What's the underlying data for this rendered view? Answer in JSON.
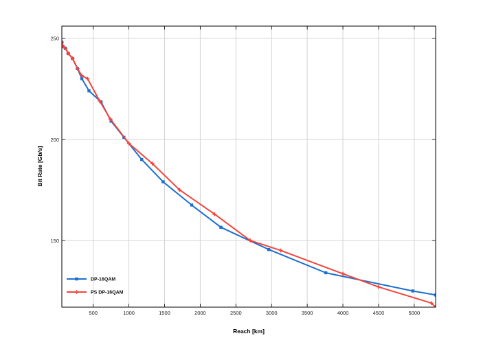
{
  "chart_data": {
    "type": "line",
    "title": "",
    "xlabel": "Reach [km]",
    "ylabel": "Bit Rate [Gb/s]",
    "xlim": [
      60,
      5300
    ],
    "ylim": [
      117,
      256
    ],
    "xticks": [
      500,
      1000,
      1500,
      2000,
      2500,
      3000,
      3500,
      4000,
      4500,
      5000
    ],
    "yticks": [
      150,
      200,
      250
    ],
    "grid": true,
    "legend_position": "bottom-left",
    "series": [
      {
        "name": "DP-16QAM",
        "color": "#1a6fd1",
        "marker": "square",
        "points": [
          [
            60,
            248
          ],
          [
            75,
            246
          ],
          [
            110,
            245
          ],
          [
            150,
            242.5
          ],
          [
            210,
            240
          ],
          [
            280,
            235
          ],
          [
            340,
            230
          ],
          [
            440,
            224
          ],
          [
            610,
            218.5
          ],
          [
            750,
            209
          ],
          [
            930,
            201
          ],
          [
            1180,
            190
          ],
          [
            1480,
            179
          ],
          [
            1880,
            167.5
          ],
          [
            2290,
            156.5
          ],
          [
            2960,
            145.5
          ],
          [
            3760,
            134
          ],
          [
            4980,
            125
          ],
          [
            5300,
            123
          ]
        ]
      },
      {
        "name": "PS  DP-16QAM",
        "color": "#f2453c",
        "marker": "plus",
        "points": [
          [
            60,
            248
          ],
          [
            75,
            246
          ],
          [
            110,
            245
          ],
          [
            150,
            242.5
          ],
          [
            210,
            240
          ],
          [
            280,
            235
          ],
          [
            340,
            231.5
          ],
          [
            420,
            230
          ],
          [
            590,
            219
          ],
          [
            740,
            210
          ],
          [
            1000,
            198
          ],
          [
            1330,
            188
          ],
          [
            1710,
            175
          ],
          [
            2200,
            163
          ],
          [
            2700,
            150
          ],
          [
            3130,
            145
          ],
          [
            4000,
            133.5
          ],
          [
            4500,
            127
          ],
          [
            5240,
            119
          ],
          [
            5300,
            117
          ]
        ]
      }
    ]
  }
}
